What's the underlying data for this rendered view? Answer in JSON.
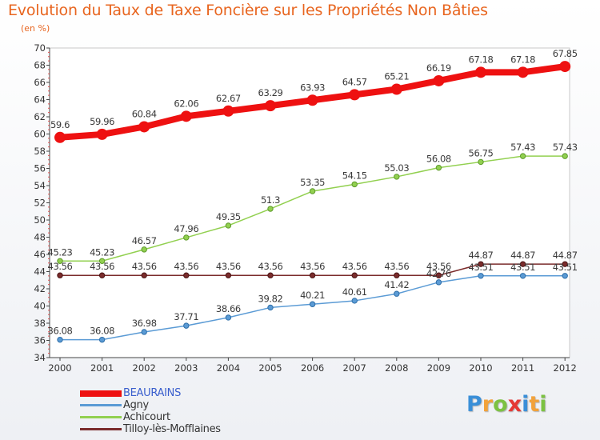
{
  "chart_data": {
    "type": "line",
    "title": "Evolution du Taux de Taxe Foncière sur les Propriétés Non Bâties",
    "unit_label": "(en %)",
    "x": [
      2000,
      2001,
      2002,
      2003,
      2004,
      2005,
      2006,
      2007,
      2008,
      2009,
      2010,
      2011,
      2012
    ],
    "ylim": [
      34,
      70
    ],
    "yticks": [
      34,
      36,
      38,
      40,
      42,
      44,
      46,
      48,
      50,
      52,
      54,
      56,
      58,
      60,
      62,
      64,
      66,
      68,
      70
    ],
    "grid": false,
    "legend_position": "bottom-left",
    "series": [
      {
        "name": "BEAURAINS",
        "color": "#ee1111",
        "values": [
          59.6,
          59.96,
          60.84,
          62.06,
          62.67,
          63.29,
          63.93,
          64.57,
          65.21,
          66.19,
          67.18,
          67.18,
          67.85
        ],
        "labels": [
          "59.6",
          "59.96",
          "60.84",
          "62.06",
          "62.67",
          "63.29",
          "63.93",
          "64.57",
          "65.21",
          "66.19",
          "67.18",
          "67.18",
          "67.85"
        ]
      },
      {
        "name": "Agny",
        "color": "#5b9bd5",
        "values": [
          36.08,
          36.08,
          36.98,
          37.71,
          38.66,
          39.82,
          40.21,
          40.61,
          41.42,
          42.76,
          43.51,
          43.51,
          43.51
        ],
        "labels": [
          "36.08",
          "36.08",
          "36.98",
          "37.71",
          "38.66",
          "39.82",
          "40.21",
          "40.61",
          "41.42",
          "42.76",
          "43.51",
          "43.51",
          "43.51"
        ]
      },
      {
        "name": "Achicourt",
        "color": "#92d050",
        "values": [
          45.23,
          45.23,
          46.57,
          47.96,
          49.35,
          51.3,
          53.35,
          54.15,
          55.03,
          56.08,
          56.75,
          57.43,
          57.43
        ],
        "labels": [
          "45.23",
          "45.23",
          "46.57",
          "47.96",
          "49.35",
          "51.3",
          "53.35",
          "54.15",
          "55.03",
          "56.08",
          "56.75",
          "57.43",
          "57.43"
        ]
      },
      {
        "name": "Tilloy-lès-Mofflaines",
        "color": "#7b2c2c",
        "values": [
          43.56,
          43.56,
          43.56,
          43.56,
          43.56,
          43.56,
          43.56,
          43.56,
          43.56,
          43.56,
          44.87,
          44.87,
          44.87
        ],
        "labels": [
          "43.56",
          "43.56",
          "43.56",
          "43.56",
          "43.56",
          "43.56",
          "43.56",
          "43.56",
          "43.56",
          "43.56",
          "44.87",
          "44.87",
          "44.87"
        ]
      }
    ]
  },
  "logo": {
    "letters": [
      "P",
      "r",
      "o",
      "x",
      "i",
      "t",
      "i"
    ],
    "colors": [
      "#3a8fd8",
      "#f2a23a",
      "#7cc242",
      "#e53935",
      "#3a8fd8",
      "#f2a23a",
      "#7cc242"
    ]
  }
}
